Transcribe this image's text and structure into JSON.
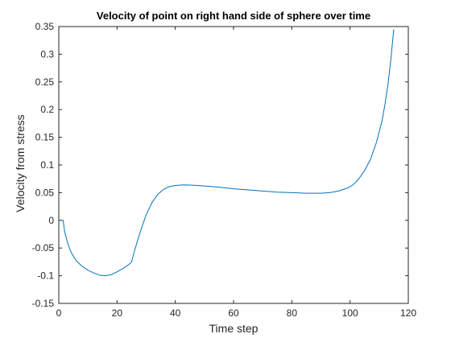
{
  "chart_data": {
    "type": "line",
    "title": "Velocity of point on right hand side of sphere over time",
    "xlabel": "Time step",
    "ylabel": "Velocity from stress",
    "xlim": [
      0,
      120
    ],
    "ylim": [
      -0.15,
      0.35
    ],
    "xticks": [
      0,
      20,
      40,
      60,
      80,
      100,
      120
    ],
    "xtick_labels": [
      "0",
      "20",
      "40",
      "60",
      "80",
      "100",
      "120"
    ],
    "yticks": [
      -0.15,
      -0.1,
      -0.05,
      0,
      0.05,
      0.1,
      0.15,
      0.2,
      0.25,
      0.3,
      0.35
    ],
    "ytick_labels": [
      "-0.15",
      "-0.1",
      "-0.05",
      "0",
      "0.05",
      "0.1",
      "0.15",
      "0.2",
      "0.25",
      "0.3",
      "0.35"
    ],
    "grid": false,
    "box": true,
    "series": [
      {
        "color": "#0072bd",
        "x": [
          1,
          1.5,
          2,
          3,
          4,
          5,
          6,
          8,
          10,
          12,
          14,
          16,
          18,
          20,
          22,
          24,
          25,
          26,
          28,
          30,
          32,
          34,
          36,
          38,
          40,
          43,
          46,
          50,
          55,
          60,
          65,
          70,
          75,
          80,
          85,
          90,
          93,
          96,
          99,
          101,
          103,
          105,
          107,
          109,
          111,
          112,
          113,
          114,
          115
        ],
        "y": [
          0,
          0,
          -0.02,
          -0.04,
          -0.055,
          -0.065,
          -0.073,
          -0.083,
          -0.09,
          -0.095,
          -0.099,
          -0.1,
          -0.098,
          -0.093,
          -0.087,
          -0.08,
          -0.075,
          -0.055,
          -0.02,
          0.01,
          0.032,
          0.047,
          0.056,
          0.061,
          0.063,
          0.064,
          0.0635,
          0.062,
          0.06,
          0.057,
          0.055,
          0.053,
          0.051,
          0.05,
          0.049,
          0.049,
          0.05,
          0.053,
          0.058,
          0.064,
          0.075,
          0.09,
          0.11,
          0.14,
          0.18,
          0.21,
          0.245,
          0.29,
          0.345
        ]
      }
    ]
  }
}
